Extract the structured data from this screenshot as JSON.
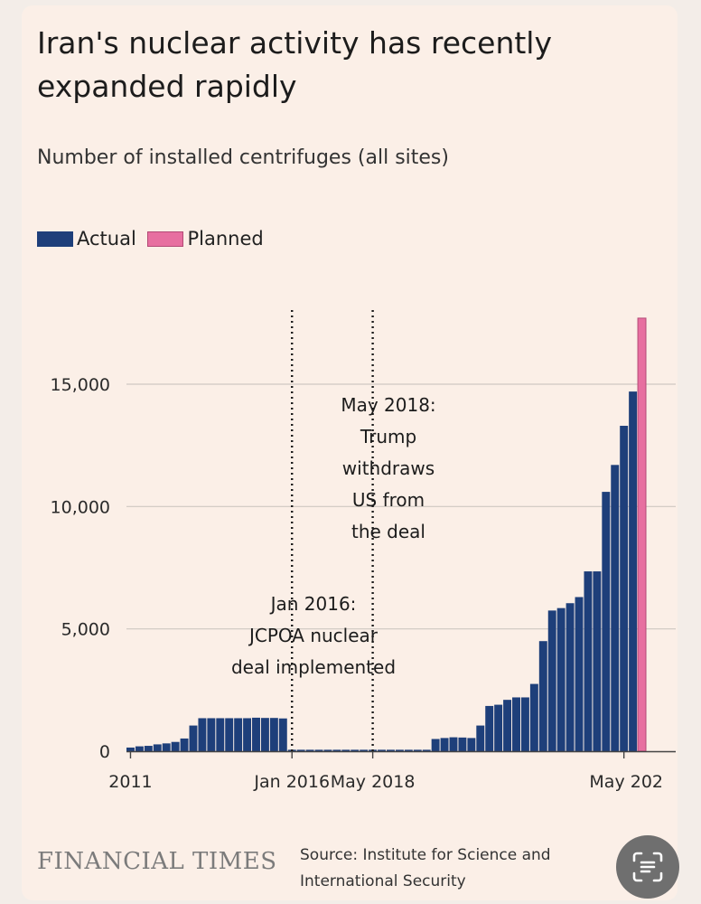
{
  "header": {
    "title": "Iran's nuclear activity has recently expanded rapidly",
    "subtitle": "Number of installed centrifuges (all sites)"
  },
  "legend": {
    "actual_label": "Actual",
    "planned_label": "Planned"
  },
  "colors": {
    "actual": "#1e3f7a",
    "planned": "#e76fa0",
    "gridline": "#cfc8c2",
    "background": "#fbefe7"
  },
  "footer": {
    "logo_text": "FINANCIAL TIMES",
    "source_line1": "Source: Institute for Science and",
    "source_line2": "International Security"
  },
  "scan_button_icon": "scan-text-icon",
  "chart_data": {
    "type": "bar",
    "title": "Iran's nuclear activity has recently expanded rapidly",
    "subtitle": "Number of installed centrifuges (all sites)",
    "xlabel": "",
    "ylabel": "",
    "ylim": [
      0,
      18000
    ],
    "ytick_values": [
      0,
      5000,
      10000,
      15000
    ],
    "ytick_labels": [
      "0",
      "5,000",
      "10,000",
      "15,000"
    ],
    "xtick_labels": [
      {
        "label": "2011",
        "index": 0
      },
      {
        "label": "Jan 2016",
        "index": 18
      },
      {
        "label": "May 2018",
        "index": 27
      },
      {
        "label": "May 202",
        "index": 55
      }
    ],
    "series": [
      {
        "name": "Actual",
        "values": [
          150,
          200,
          220,
          280,
          320,
          380,
          520,
          1050,
          1350,
          1350,
          1350,
          1350,
          1350,
          1350,
          1370,
          1360,
          1360,
          1340,
          60,
          60,
          60,
          60,
          60,
          60,
          60,
          60,
          60,
          60,
          60,
          60,
          60,
          60,
          60,
          60,
          500,
          540,
          570,
          560,
          540,
          1050,
          1850,
          1900,
          2100,
          2200,
          2200,
          2750,
          4500,
          5750,
          5850,
          6050,
          6300,
          7350,
          7350,
          10600,
          11700,
          13300,
          14700
        ]
      },
      {
        "name": "Planned",
        "values": [
          0,
          0,
          0,
          0,
          0,
          0,
          0,
          0,
          0,
          0,
          0,
          0,
          0,
          0,
          0,
          0,
          0,
          0,
          0,
          0,
          0,
          0,
          0,
          0,
          0,
          0,
          0,
          0,
          0,
          0,
          0,
          0,
          0,
          0,
          0,
          0,
          0,
          0,
          0,
          0,
          0,
          0,
          0,
          0,
          0,
          0,
          0,
          0,
          0,
          0,
          0,
          0,
          0,
          0,
          0,
          0,
          0,
          17700
        ]
      }
    ],
    "annotations": [
      {
        "at_index": 18,
        "lines": [
          "Jan 2016:",
          "JCPOA nuclear",
          "deal implemented"
        ]
      },
      {
        "at_index": 27,
        "lines": [
          "May 2018:",
          "Trump",
          "withdraws",
          "US from",
          "the deal"
        ]
      }
    ]
  }
}
